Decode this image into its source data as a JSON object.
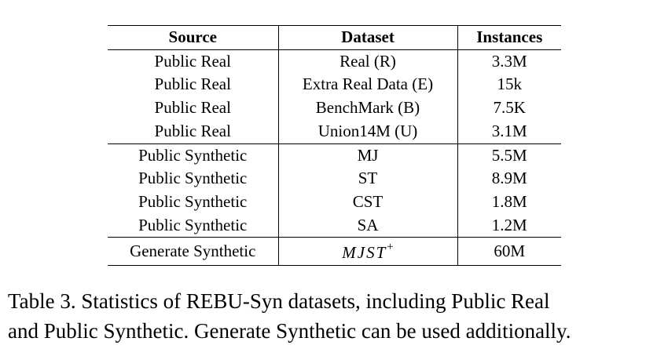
{
  "table": {
    "headers": [
      "Source",
      "Dataset",
      "Instances"
    ],
    "groups": [
      {
        "rows": [
          {
            "source": "Public Real",
            "dataset": "Real (R)",
            "instances": "3.3M"
          },
          {
            "source": "Public Real",
            "dataset": "Extra Real Data (E)",
            "instances": "15k"
          },
          {
            "source": "Public Real",
            "dataset": "BenchMark (B)",
            "instances": "7.5K"
          },
          {
            "source": "Public Real",
            "dataset": "Union14M (U)",
            "instances": "3.1M"
          }
        ]
      },
      {
        "rows": [
          {
            "source": "Public Synthetic",
            "dataset": "MJ",
            "instances": "5.5M"
          },
          {
            "source": "Public Synthetic",
            "dataset": "ST",
            "instances": "8.9M"
          },
          {
            "source": "Public Synthetic",
            "dataset": "CST",
            "instances": "1.8M"
          },
          {
            "source": "Public Synthetic",
            "dataset": "SA",
            "instances": "1.2M"
          }
        ]
      },
      {
        "rows": [
          {
            "source": "Generate Synthetic",
            "dataset": "MJST",
            "dataset_sup": "+",
            "instances": "60M"
          }
        ]
      }
    ]
  },
  "caption": {
    "line1": "Table 3.  Statistics of REBU-Syn datasets, including Public Real",
    "line2": "and Public Synthetic. Generate Synthetic can be used additionally."
  }
}
